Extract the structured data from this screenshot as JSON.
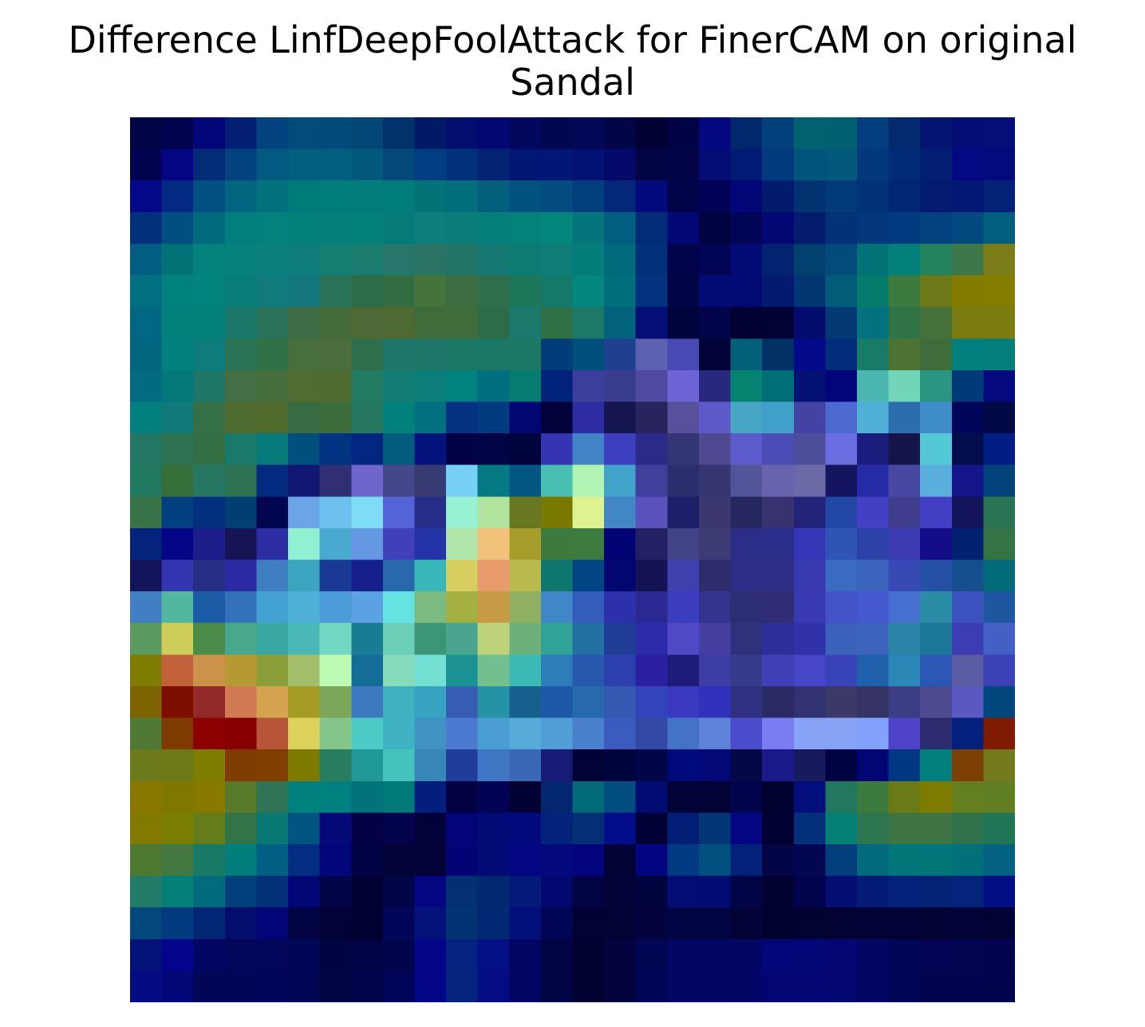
{
  "title_lines": [
    "Difference LinfDeepFoolAttack for FinerCAM on original",
    "Sandal"
  ],
  "chart_data": {
    "type": "heatmap",
    "title": "Difference LinfDeepFoolAttack for FinerCAM on original Sandal",
    "axes_visible": false,
    "rows": 28,
    "cols": 28,
    "cell_colors": [
      [
        "#020545",
        "#01034e",
        "#020679",
        "#032075",
        "#02427e",
        "#014c7a",
        "#024a7a",
        "#024676",
        "#02326b",
        "#021a65",
        "#020d6e",
        "#030771",
        "#02085c",
        "#020752",
        "#020756",
        "#020646",
        "#010134",
        "#020346",
        "#03087e",
        "#03276c",
        "#033f7b",
        "#01626f",
        "#01606f",
        "#033f7e",
        "#032a6f",
        "#031471",
        "#020e75",
        "#040e79"
      ],
      [
        "#02034e",
        "#030582",
        "#032c76",
        "#02437d",
        "#025a83",
        "#015f7e",
        "#015f7e",
        "#02597b",
        "#02487a",
        "#023d82",
        "#02317c",
        "#032473",
        "#031674",
        "#021676",
        "#031074",
        "#030869",
        "#020444",
        "#020447",
        "#020c72",
        "#021b75",
        "#023a7b",
        "#01557b",
        "#01587b",
        "#02397a",
        "#022b75",
        "#031f73",
        "#030983",
        "#030a7b"
      ],
      [
        "#030888",
        "#032982",
        "#024f81",
        "#01657f",
        "#02737c",
        "#007b7b",
        "#017c7c",
        "#027b7d",
        "#017c7d",
        "#027478",
        "#016e7b",
        "#025f7c",
        "#025280",
        "#024c80",
        "#02407d",
        "#032879",
        "#020a7b",
        "#020349",
        "#020155",
        "#020677",
        "#021b6c",
        "#023370",
        "#033a78",
        "#033377",
        "#022874",
        "#031c72",
        "#031873",
        "#032277"
      ],
      [
        "#02307b",
        "#024d82",
        "#026a7d",
        "#017e7d",
        "#02817d",
        "#028079",
        "#067e79",
        "#03807a",
        "#047b78",
        "#0d7e7b",
        "#0a7d7b",
        "#067e7c",
        "#048178",
        "#02867c",
        "#04767b",
        "#015e7e",
        "#022c78",
        "#020776",
        "#010240",
        "#020555",
        "#030774",
        "#031c6c",
        "#023377",
        "#03387a",
        "#033b80",
        "#03417f",
        "#01497f",
        "#015f7d"
      ],
      [
        "#015e83",
        "#017377",
        "#02817d",
        "#06827b",
        "#09807c",
        "#0d7c7b",
        "#167d73",
        "#1a7c6f",
        "#26766b",
        "#2a7262",
        "#227466",
        "#157871",
        "#0e7b73",
        "#0f7c75",
        "#037d79",
        "#006a7b",
        "#033179",
        "#03034a",
        "#020555",
        "#020a76",
        "#032270",
        "#024070",
        "#024b7b",
        "#017377",
        "#03807a",
        "#22835d",
        "#3d774a",
        "#7a7d18"
      ],
      [
        "#017082",
        "#01817d",
        "#02837d",
        "#087c78",
        "#117a7c",
        "#12767c",
        "#2a7257",
        "#2c6c48",
        "#346b40",
        "#447439",
        "#3b6d41",
        "#2f6f4e",
        "#1c7759",
        "#14786b",
        "#02867d",
        "#006f7c",
        "#023280",
        "#020546",
        "#020a76",
        "#020a76",
        "#031a70",
        "#023774",
        "#025c79",
        "#037c6c",
        "#3c793c",
        "#6d7919",
        "#817b00",
        "#837d00"
      ],
      [
        "#016782",
        "#02807c",
        "#03807a",
        "#1b7768",
        "#2a7259",
        "#3e6c44",
        "#466b3a",
        "#4f6936",
        "#4f6932",
        "#3e6c3a",
        "#3e6c3a",
        "#2c6c48",
        "#1b786c",
        "#2e7145",
        "#1d7868",
        "#03627c",
        "#030e77",
        "#01043c",
        "#020348",
        "#010232",
        "#020335",
        "#020c6d",
        "#033a74",
        "#01727e",
        "#307446",
        "#47713a",
        "#797a10",
        "#7a7c10"
      ],
      [
        "#01657f",
        "#02807f",
        "#0d7c7b",
        "#2a7254",
        "#307046",
        "#486e3b",
        "#4b6e3c",
        "#2f6e4c",
        "#20756b",
        "#1d7667",
        "#1c7767",
        "#1b7866",
        "#1c7765",
        "#023d79",
        "#024e7d",
        "#1f3f8f",
        "#5e60b1",
        "#4a48b4",
        "#010337",
        "#026178",
        "#023166",
        "#02098a",
        "#022c7c",
        "#187b67",
        "#4c7234",
        "#3e6d3b",
        "#02807f",
        "#037e7c"
      ],
      [
        "#036a81",
        "#03787b",
        "#1d7666",
        "#427044",
        "#456e3c",
        "#506c32",
        "#4f6b2f",
        "#237b63",
        "#137d74",
        "#0b7e79",
        "#00837e",
        "#026f81",
        "#067c71",
        "#02237a",
        "#3b3e9d",
        "#3a3c8d",
        "#4f49a0",
        "#6e63d6",
        "#29287e",
        "#058270",
        "#016f78",
        "#031174",
        "#02057a",
        "#4ab6af",
        "#70d6b7",
        "#2a9682",
        "#023a78",
        "#04097e"
      ],
      [
        "#02807e",
        "#11797a",
        "#356f45",
        "#4e6b30",
        "#506a2c",
        "#376c42",
        "#3c6c3a",
        "#25785f",
        "#02807b",
        "#02717f",
        "#023281",
        "#013a7e",
        "#020672",
        "#010239",
        "#2e2ba3",
        "#15154f",
        "#27245e",
        "#57509c",
        "#5e58c8",
        "#46a6c3",
        "#40a0c9",
        "#4443a3",
        "#4c6ad0",
        "#51b0d7",
        "#2c6dac",
        "#3f8dc8",
        "#03055a",
        "#020a46"
      ],
      [
        "#237663",
        "#2d7352",
        "#336d43",
        "#19796a",
        "#06797b",
        "#024e7d",
        "#033383",
        "#032780",
        "#035c7e",
        "#05147c",
        "#020246",
        "#020545",
        "#01043c",
        "#3534b2",
        "#4284c6",
        "#3d3ec0",
        "#2c2a89",
        "#343574",
        "#4e4990",
        "#5d5acb",
        "#4d4bb5",
        "#4c4e9c",
        "#6b6ee0",
        "#1a1d7c",
        "#16154a",
        "#53c8d6",
        "#020d4c",
        "#021e85"
      ],
      [
        "#20785e",
        "#376f3a",
        "#257761",
        "#2c7151",
        "#022b80",
        "#121774",
        "#302f74",
        "#6e66cd",
        "#45478a",
        "#383a72",
        "#77d0f5",
        "#057981",
        "#015782",
        "#48bfb0",
        "#b1f4b3",
        "#41a3c9",
        "#423f9c",
        "#2b2d6c",
        "#363673",
        "#54549a",
        "#6863ad",
        "#6b6aa6",
        "#15145e",
        "#242ba4",
        "#4848a4",
        "#5aaedb",
        "#15148a",
        "#02437c"
      ],
      [
        "#387247",
        "#023f80",
        "#03307e",
        "#023e71",
        "#010650",
        "#6ca4e8",
        "#6ec0ee",
        "#7fdcf9",
        "#5463d6",
        "#262d89",
        "#98f0d2",
        "#b0e49c",
        "#697820",
        "#797900",
        "#def290",
        "#4187c6",
        "#5a52bd",
        "#1f1e6a",
        "#3a3771",
        "#262660",
        "#363370",
        "#232479",
        "#2347a6",
        "#4340c4",
        "#403d8f",
        "#443ec5",
        "#14145c",
        "#2a7455"
      ],
      [
        "#03237c",
        "#020684",
        "#1b1e8a",
        "#151555",
        "#2c2ca3",
        "#91efd2",
        "#4aa9cf",
        "#6598e2",
        "#4040ba",
        "#2434a6",
        "#b1e6ab",
        "#f0c27a",
        "#a79d2b",
        "#3e7a3e",
        "#3d7b3e",
        "#020476",
        "#232163",
        "#434488",
        "#3d3b74",
        "#2b2d89",
        "#2a2d89",
        "#3535b7",
        "#3054b6",
        "#2d42a9",
        "#3b3ab0",
        "#150c8a",
        "#022170",
        "#357345"
      ],
      [
        "#14145a",
        "#3435b0",
        "#262f83",
        "#2b2aa4",
        "#3f7ec0",
        "#3ba5c0",
        "#1a3994",
        "#16208d",
        "#2a68ae",
        "#3ab8b9",
        "#d6ce5e",
        "#e79a6a",
        "#b9ba4e",
        "#0e766d",
        "#024584",
        "#020770",
        "#141454",
        "#3f3fad",
        "#2d2d6d",
        "#2d2c86",
        "#2f2e86",
        "#3939ae",
        "#3a6bc0",
        "#3b65bc",
        "#3848b4",
        "#2550a5",
        "#164f8e",
        "#016b7a"
      ],
      [
        "#427fc2",
        "#51b79e",
        "#1c5ba5",
        "#3372ba",
        "#44a2d2",
        "#4fb0d8",
        "#4a9bd7",
        "#5ba1e4",
        "#65e3e3",
        "#7bba81",
        "#a4b142",
        "#c79b45",
        "#8fb061",
        "#3f87c6",
        "#345cbb",
        "#2c30ab",
        "#2b2894",
        "#3b3cbe",
        "#34348e",
        "#2c2d73",
        "#2e2d76",
        "#3939b2",
        "#4553c9",
        "#4658cd",
        "#466fd2",
        "#2b8ca7",
        "#3c52bf",
        "#1f56a0"
      ],
      [
        "#5a9a5e",
        "#cfcd5a",
        "#4d8b48",
        "#4aa78c",
        "#3aa8a1",
        "#4ab8b6",
        "#72d8c3",
        "#1a7b94",
        "#6acfb6",
        "#3b9576",
        "#4ba48d",
        "#bdd27a",
        "#6eb07a",
        "#31a396",
        "#2270a4",
        "#203d96",
        "#2c2aa6",
        "#5048c4",
        "#433ea0",
        "#2f317b",
        "#2e2e9a",
        "#3132a8",
        "#3c62bc",
        "#3e65bd",
        "#2a84a7",
        "#1c7899",
        "#3c3cb3",
        "#4460c5"
      ],
      [
        "#7e7d01",
        "#c0613b",
        "#cb924c",
        "#b79934",
        "#8b9e3a",
        "#a2be6a",
        "#bdfab4",
        "#146d97",
        "#85dcbc",
        "#74dfd3",
        "#1c9294",
        "#73c08e",
        "#3db9b5",
        "#2c7db8",
        "#2959ad",
        "#2b40ad",
        "#2b1fa2",
        "#1e1c7b",
        "#3e3da3",
        "#363b8a",
        "#4141b5",
        "#4746c6",
        "#3743b7",
        "#2060aa",
        "#2b88b6",
        "#2d57b4",
        "#5c5ca4",
        "#3943b5"
      ],
      [
        "#7e6400",
        "#7e0e00",
        "#932a2a",
        "#d27852",
        "#d5a451",
        "#a59c26",
        "#7ca65a",
        "#3e7ac0",
        "#3eb0c0",
        "#37a5c1",
        "#365cb4",
        "#2592a5",
        "#15608d",
        "#1e58a6",
        "#2769ad",
        "#3558b0",
        "#3344bb",
        "#3a38c1",
        "#3032bb",
        "#2f3080",
        "#292a66",
        "#323172",
        "#3a3968",
        "#353264",
        "#3d3d86",
        "#4d4b90",
        "#5b58c2",
        "#02467e"
      ],
      [
        "#4f7934",
        "#7e3a00",
        "#8c0000",
        "#870000",
        "#b75539",
        "#dcd25c",
        "#84c68a",
        "#4ccbc7",
        "#3fb2c3",
        "#4093c3",
        "#4b7bd0",
        "#4a9dd0",
        "#56abd8",
        "#519dd5",
        "#4a7fcc",
        "#3c5bbf",
        "#3349a5",
        "#4472c4",
        "#5f83d8",
        "#4a4ccc",
        "#7a7df2",
        "#86a3f5",
        "#86a3f5",
        "#82a2fb",
        "#4f42c9",
        "#2c2b6e",
        "#03207c",
        "#7f1b00"
      ],
      [
        "#6c7a1b",
        "#6d7917",
        "#7f7d00",
        "#7f3b00",
        "#813e00",
        "#7e7a00",
        "#277d5d",
        "#219998",
        "#45c2bb",
        "#3887b8",
        "#203d9a",
        "#4077c4",
        "#3a67b6",
        "#181a78",
        "#010236",
        "#01033d",
        "#020547",
        "#010a7b",
        "#020877",
        "#040844",
        "#1c1a8b",
        "#191a5c",
        "#010342",
        "#020574",
        "#023883",
        "#017f7f",
        "#7c4004",
        "#727a1b"
      ],
      [
        "#887800",
        "#7f7700",
        "#887a00",
        "#567a2a",
        "#2d7354",
        "#018080",
        "#018080",
        "#027378",
        "#027a7a",
        "#031f7b",
        "#020141",
        "#020353",
        "#020133",
        "#022670",
        "#016978",
        "#024d7f",
        "#020b71",
        "#010236",
        "#010337",
        "#02044d",
        "#010130",
        "#020e7b",
        "#22775f",
        "#3c7b3e",
        "#6a7a17",
        "#7d7b00",
        "#637f20",
        "#607f24"
      ],
      [
        "#817900",
        "#797d03",
        "#657d18",
        "#327347",
        "#077972",
        "#025580",
        "#040878",
        "#020245",
        "#03034d",
        "#010239",
        "#020478",
        "#020a76",
        "#02097d",
        "#03227a",
        "#022f75",
        "#020b8a",
        "#010135",
        "#021f75",
        "#023775",
        "#020683",
        "#010131",
        "#03307a",
        "#058075",
        "#2d7651",
        "#3d7442",
        "#3f7445",
        "#2f714b",
        "#1f7556"
      ],
      [
        "#4d7930",
        "#457942",
        "#187a64",
        "#017e7c",
        "#015f84",
        "#032d80",
        "#03067a",
        "#020345",
        "#020337",
        "#020236",
        "#020476",
        "#020a75",
        "#020781",
        "#03097a",
        "#04057e",
        "#020235",
        "#02057f",
        "#033a84",
        "#02507f",
        "#03237a",
        "#030546",
        "#030650",
        "#023d7c",
        "#016b7d",
        "#027779",
        "#027779",
        "#017179",
        "#02617e"
      ],
      [
        "#227c68",
        "#058078",
        "#026c7e",
        "#02407c",
        "#033178",
        "#020777",
        "#020547",
        "#010233",
        "#020548",
        "#030680",
        "#023071",
        "#022870",
        "#031a78",
        "#030770",
        "#020443",
        "#020437",
        "#020440",
        "#030b75",
        "#020b74",
        "#020545",
        "#020230",
        "#02034c",
        "#030d72",
        "#031b75",
        "#03217a",
        "#032476",
        "#03247a",
        "#030e85"
      ],
      [
        "#02487c",
        "#03397e",
        "#032575",
        "#030d6d",
        "#020577",
        "#020443",
        "#010237",
        "#010232",
        "#030558",
        "#031179",
        "#023473",
        "#022873",
        "#030f7b",
        "#020554",
        "#020235",
        "#020235",
        "#02033f",
        "#020444",
        "#020444",
        "#020336",
        "#020230",
        "#010331",
        "#020233",
        "#020237",
        "#020236",
        "#020334",
        "#020336",
        "#020334"
      ],
      [
        "#031279",
        "#03068a",
        "#030662",
        "#03075c",
        "#030659",
        "#020657",
        "#020442",
        "#020446",
        "#02054b",
        "#030688",
        "#03237e",
        "#030f82",
        "#030562",
        "#020443",
        "#020231",
        "#02033f",
        "#030653",
        "#030662",
        "#030663",
        "#030664",
        "#030678",
        "#030677",
        "#030673",
        "#030663",
        "#030557",
        "#030454",
        "#030452",
        "#030451"
      ],
      [
        "#030b80",
        "#030677",
        "#030557",
        "#030557",
        "#03055a",
        "#030555",
        "#020444",
        "#02044b",
        "#020459",
        "#030687",
        "#03237c",
        "#030c81",
        "#030562",
        "#020443",
        "#020230",
        "#02033d",
        "#030654",
        "#030662",
        "#030663",
        "#030664",
        "#030672",
        "#030673",
        "#030670",
        "#030662",
        "#020553",
        "#030450",
        "#03044f",
        "#03044e"
      ]
    ]
  }
}
